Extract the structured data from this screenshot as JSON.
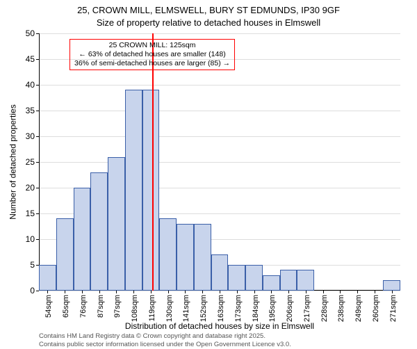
{
  "title": {
    "line1": "25, CROWN MILL, ELMSWELL, BURY ST EDMUNDS, IP30 9GF",
    "line2": "Size of property relative to detached houses in Elmswell"
  },
  "ylabel": "Number of detached properties",
  "xlabel": "Distribution of detached houses by size in Elmswell",
  "footer": {
    "line1": "Contains HM Land Registry data © Crown copyright and database right 2025.",
    "line2": "Contains public sector information licensed under the Open Government Licence v3.0."
  },
  "chart": {
    "type": "histogram",
    "background_color": "#ffffff",
    "grid_color": "#646464",
    "grid_opacity": 0.22,
    "bar_fill": "#c8d4ec",
    "bar_border": "#3a5fa8",
    "ref_line_color": "#ff0000",
    "annotation_border": "#ff0000",
    "ylim": [
      0,
      50
    ],
    "ytick_step": 5,
    "yticks": [
      0,
      5,
      10,
      15,
      20,
      25,
      30,
      35,
      40,
      45,
      50
    ],
    "categories": [
      "54sqm",
      "65sqm",
      "76sqm",
      "87sqm",
      "97sqm",
      "108sqm",
      "119sqm",
      "130sqm",
      "141sqm",
      "152sqm",
      "163sqm",
      "173sqm",
      "184sqm",
      "195sqm",
      "206sqm",
      "217sqm",
      "228sqm",
      "238sqm",
      "249sqm",
      "260sqm",
      "271sqm"
    ],
    "values": [
      5,
      14,
      20,
      23,
      26,
      39,
      39,
      14,
      13,
      13,
      7,
      5,
      5,
      3,
      4,
      4,
      0,
      0,
      0,
      0,
      2
    ],
    "ref_line_category_index": 6.6,
    "annotation": {
      "line1": "25 CROWN MILL: 125sqm",
      "line2": "← 63% of detached houses are smaller (148)",
      "line3": "36% of semi-detached houses are larger (85) →"
    },
    "title_fontsize": 13,
    "label_fontsize": 12,
    "xtick_fontsize": 11,
    "tick_fontsize": 12
  }
}
